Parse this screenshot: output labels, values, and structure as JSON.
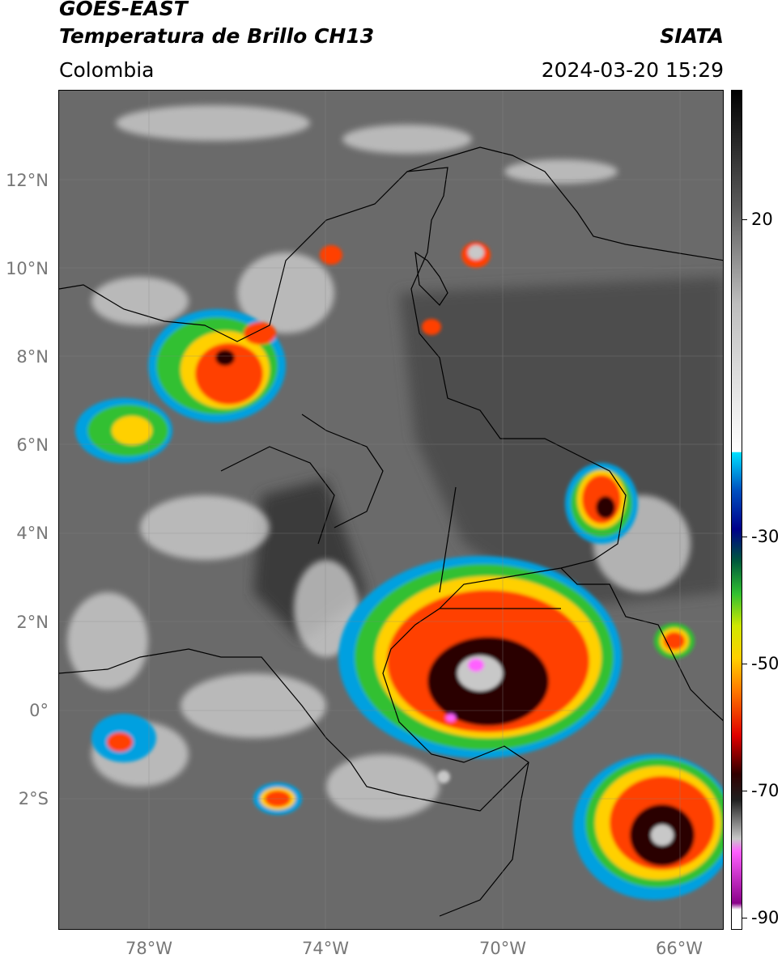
{
  "header": {
    "satellite": "GOES-EAST",
    "product": "Temperatura de Brillo CH13",
    "agency": "SIATA",
    "region": "Colombia",
    "datetime": "2024-03-20 15:29"
  },
  "map": {
    "lat_labels": [
      "12°N",
      "10°N",
      "8°N",
      "6°N",
      "4°N",
      "2°N",
      "0°",
      "2°S"
    ],
    "lon_labels": [
      "78°W",
      "74°W",
      "70°W",
      "66°W"
    ],
    "lat_range": [
      -5,
      14
    ],
    "lon_range": [
      -80,
      -65
    ]
  },
  "colorbar": {
    "labels": [
      "20",
      "-30",
      "-50",
      "-70",
      "-90"
    ],
    "range": [
      -92,
      38
    ],
    "stops": [
      {
        "v": 38,
        "c": "#000000"
      },
      {
        "v": 20,
        "c": "#5a5a5a"
      },
      {
        "v": 5,
        "c": "#bdbdbd"
      },
      {
        "v": -18,
        "c": "#ffffff"
      },
      {
        "v": -18.1,
        "c": "#00e0ff"
      },
      {
        "v": -24,
        "c": "#0050c0"
      },
      {
        "v": -30,
        "c": "#00008a"
      },
      {
        "v": -35,
        "c": "#005a3c"
      },
      {
        "v": -40,
        "c": "#30c030"
      },
      {
        "v": -45,
        "c": "#d0e800"
      },
      {
        "v": -50,
        "c": "#ffd000"
      },
      {
        "v": -55,
        "c": "#ff7a00"
      },
      {
        "v": -62,
        "c": "#e00000"
      },
      {
        "v": -68,
        "c": "#300000"
      },
      {
        "v": -72,
        "c": "#202020"
      },
      {
        "v": -78,
        "c": "#c8c8c8"
      },
      {
        "v": -80,
        "c": "#ff60ff"
      },
      {
        "v": -88,
        "c": "#8a008a"
      },
      {
        "v": -89,
        "c": "#ffffff"
      }
    ]
  },
  "colors": {
    "background": "#6d6d6d",
    "cloud_light": "#d8d8d8",
    "border": "#000000"
  }
}
